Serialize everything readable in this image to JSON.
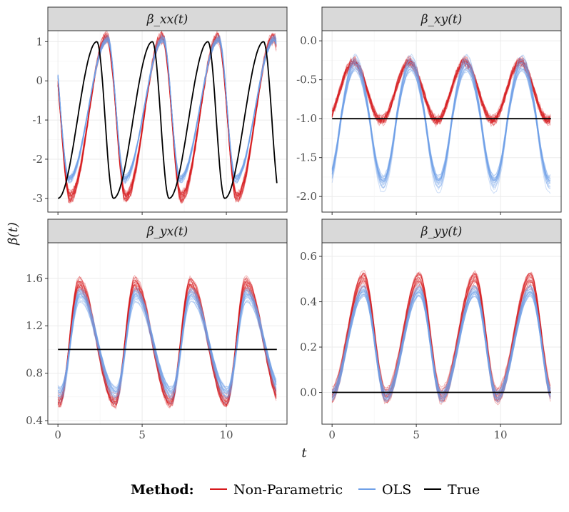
{
  "chart_data": {
    "type": "line",
    "layout": "facet-grid-2x2",
    "ylabel": "β(t)",
    "xlabel": "t",
    "xlim": [
      -0.6,
      13.6
    ],
    "x_ticks": [
      0,
      5,
      10
    ],
    "x_tick_labels": [
      "0",
      "5",
      "10"
    ],
    "legend": {
      "title": "Method:",
      "position": "bottom",
      "entries": [
        {
          "label": "Non-Parametric",
          "color": "#d7191c"
        },
        {
          "label": "OLS",
          "color": "#6fa0e8"
        },
        {
          "label": "True",
          "color": "#000000"
        }
      ]
    },
    "panels": [
      {
        "id": "xx",
        "title": "β_xx(t)",
        "ylim": [
          -3.35,
          1.28
        ],
        "y_ticks": [
          1,
          0,
          -1,
          -2,
          -3
        ],
        "y_tick_labels": [
          "1",
          "0",
          "-1",
          "-2",
          "-3"
        ],
        "n_replicates": 22,
        "true": {
          "kind": "sawtooth",
          "period": 3.3,
          "phase": 0,
          "min": -3,
          "max": 1
        },
        "ols": {
          "kind": "saw",
          "period": 3.3,
          "phase": 0.65,
          "center": -0.72,
          "amplitude": 1.8,
          "peak_at": 0.7,
          "spread": 0.05,
          "noise": 0.02
        },
        "non_parametric": {
          "kind": "saw",
          "period": 3.3,
          "phase": 0.72,
          "center": -0.93,
          "amplitude": 2.03,
          "peak_at": 0.66,
          "spread": 0.05,
          "noise": 0.04
        }
      },
      {
        "id": "xy",
        "title": "β_xy(t)",
        "ylim": [
          -2.2,
          0.13
        ],
        "y_ticks": [
          0.0,
          -0.5,
          -1.0,
          -1.5,
          -2.0
        ],
        "y_tick_labels": [
          "0.0",
          "-0.5",
          "-1.0",
          "-1.5",
          "-2.0"
        ],
        "n_replicates": 22,
        "true": {
          "kind": "constant",
          "value": -1.0
        },
        "ols": {
          "kind": "sine",
          "period": 3.3,
          "phase": 0.55,
          "center": -0.95,
          "amplitude": 0.68,
          "skew": 0.3,
          "spread": 0.12,
          "noise": 0.015
        },
        "non_parametric": {
          "kind": "sine",
          "period": 3.3,
          "phase": 0.45,
          "center": -0.65,
          "amplitude": 0.38,
          "skew": 0.0,
          "spread": 0.06,
          "noise": 0.035
        }
      },
      {
        "id": "yx",
        "title": "β_yx(t)",
        "ylim": [
          0.37,
          1.9
        ],
        "y_ticks": [
          1.6,
          1.2,
          0.8,
          0.4
        ],
        "y_tick_labels": [
          "1.6",
          "1.2",
          "0.8",
          "0.4"
        ],
        "n_replicates": 22,
        "true": {
          "kind": "constant",
          "value": 1.0
        },
        "ols": {
          "kind": "saw",
          "period": 3.3,
          "phase": 0.15,
          "center": 1.04,
          "amplitude": 0.42,
          "peak_at": 0.35,
          "spread": 0.09,
          "noise": 0.012
        },
        "non_parametric": {
          "kind": "saw",
          "period": 3.3,
          "phase": 0.1,
          "center": 1.06,
          "amplitude": 0.5,
          "peak_at": 0.35,
          "spread": 0.07,
          "noise": 0.025
        }
      },
      {
        "id": "yy",
        "title": "β_yy(t)",
        "ylim": [
          -0.14,
          0.66
        ],
        "y_ticks": [
          0.6,
          0.4,
          0.2,
          0.0
        ],
        "y_tick_labels": [
          "0.6",
          "0.4",
          "0.2",
          "0.0"
        ],
        "n_replicates": 22,
        "true": {
          "kind": "constant",
          "value": 0.0
        },
        "ols": {
          "kind": "saw",
          "period": 3.3,
          "phase": -0.1,
          "center": 0.22,
          "amplitude": 0.23,
          "peak_at": 0.6,
          "spread": 0.05,
          "noise": 0.01
        },
        "non_parametric": {
          "kind": "saw",
          "period": 3.3,
          "phase": -0.1,
          "center": 0.24,
          "amplitude": 0.26,
          "peak_at": 0.6,
          "spread": 0.06,
          "noise": 0.02
        }
      }
    ]
  }
}
